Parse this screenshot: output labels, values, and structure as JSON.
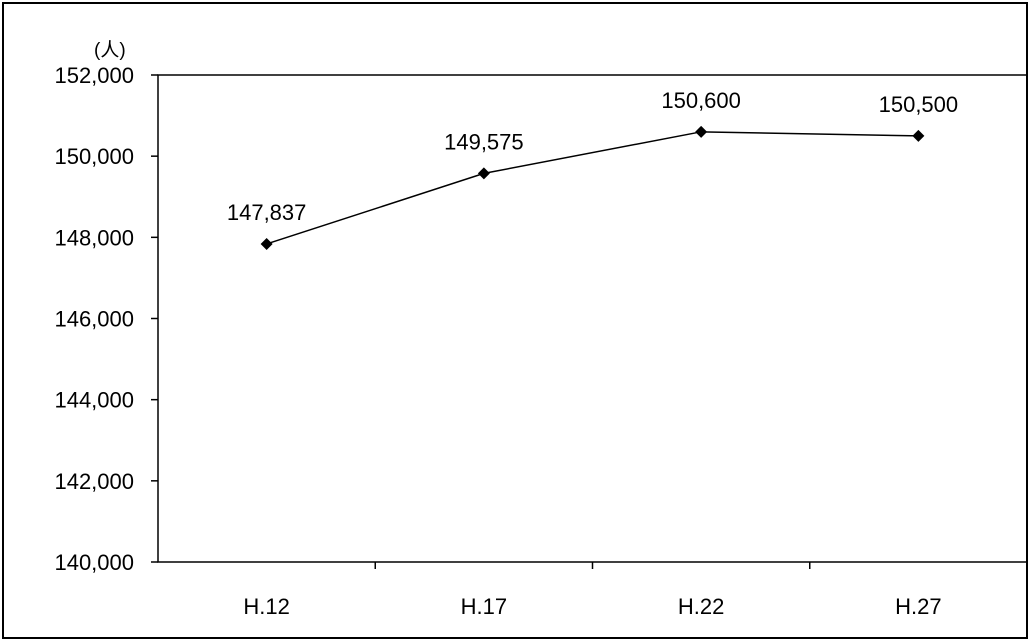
{
  "chart_data": {
    "type": "line",
    "categories": [
      "H.12",
      "H.17",
      "H.22",
      "H.27"
    ],
    "series": [
      {
        "values": [
          147837,
          149575,
          150600,
          150500
        ]
      }
    ],
    "data_labels": [
      "147,837",
      "149,575",
      "150,600",
      "150,500"
    ],
    "y_unit": "(人)",
    "yticks": [
      140000,
      142000,
      144000,
      146000,
      148000,
      150000,
      152000
    ],
    "ytick_labels": [
      "140,000",
      "142,000",
      "144,000",
      "146,000",
      "148,000",
      "150,000",
      "152,000"
    ],
    "ylim": [
      140000,
      152000
    ],
    "grid": false,
    "legend": "none",
    "marker": "diamond",
    "line_color": "#000000"
  }
}
